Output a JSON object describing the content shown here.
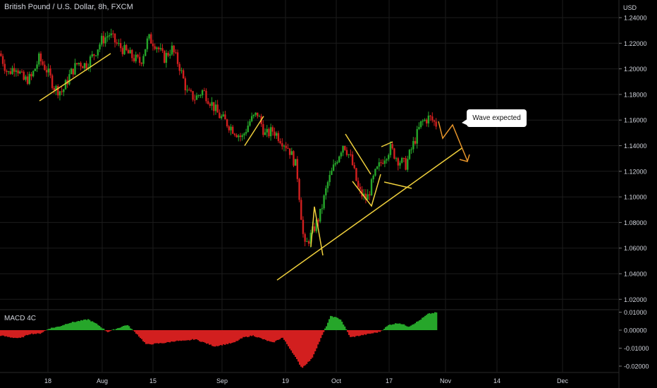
{
  "header": {
    "title": "British Pound / U.S. Dollar, 8h, FXCM",
    "currency": "USD"
  },
  "indicator": {
    "title": "MACD 4C"
  },
  "annotation": {
    "text": "Wave expected"
  },
  "colors": {
    "up": "#26a62a",
    "down": "#d21f1f",
    "drawing": "#f0d03c",
    "projection": "#e8952a",
    "grid": "#1c1c1c",
    "text": "#d1d4dc"
  },
  "chart_data": [
    {
      "type": "candlestick",
      "title": "British Pound / U.S. Dollar, 8h, FXCM",
      "y_axis": {
        "unit": "USD",
        "ticks": [
          "1.24000",
          "1.22000",
          "1.20000",
          "1.18000",
          "1.16000",
          "1.14000",
          "1.12000",
          "1.10000",
          "1.08000",
          "1.06000",
          "1.04000",
          "1.02000"
        ],
        "range": [
          1.0125,
          1.2475
        ]
      },
      "x_axis": {
        "ticks": [
          "18",
          "Aug",
          "15",
          "Sep",
          "19",
          "Oct",
          "17",
          "Nov",
          "14",
          "Dec"
        ]
      },
      "series": [
        {
          "segment": 1,
          "closes": [
            1.212,
            1.196,
            1.203,
            1.191,
            1.193,
            1.208,
            1.199,
            1.185,
            1.182,
            1.196,
            1.205,
            1.203,
            1.211,
            1.222,
            1.227,
            1.219,
            1.214,
            1.209,
            1.205,
            1.224,
            1.219,
            1.208,
            1.216,
            1.202,
            1.181,
            1.177,
            1.183,
            1.174,
            1.164,
            1.158,
            1.152,
            1.146,
            1.159,
            1.165,
            1.148,
            1.152,
            1.145,
            1.138,
            1.123,
            1.06,
            1.072,
            1.086,
            1.111,
            1.127,
            1.142,
            1.129,
            1.104,
            1.098,
            1.117,
            1.129,
            1.138,
            1.129,
            1.125,
            1.142,
            1.158,
            1.162,
            1.156
          ]
        }
      ],
      "drawings": [
        {
          "type": "trendline",
          "from": [
            "18",
            1.175
          ],
          "to": [
            "Aug",
            1.212
          ]
        },
        {
          "type": "trendline",
          "from": [
            "Sep",
            1.14
          ],
          "to": [
            "Sep",
            1.163
          ]
        },
        {
          "type": "trendline",
          "from": [
            "19",
            1.035
          ],
          "to": [
            "Nov",
            1.138
          ]
        },
        {
          "type": "projection",
          "label": "Wave expected"
        }
      ]
    },
    {
      "type": "histogram",
      "title": "MACD 4C",
      "y_axis": {
        "ticks": [
          "0.01000",
          "0.00000",
          "-0.01000",
          "-0.02000"
        ],
        "range": [
          -0.0225,
          0.0108
        ]
      },
      "bucket_values": [
        -0.003,
        -0.004,
        -0.0045,
        -0.002,
        -0.002,
        0.001,
        0.002,
        0.004,
        0.005,
        0.006,
        0.003,
        -0.001,
        0.001,
        0.003,
        -0.002,
        -0.008,
        -0.0075,
        -0.007,
        -0.006,
        -0.006,
        -0.005,
        -0.007,
        -0.009,
        -0.008,
        -0.007,
        -0.004,
        -0.003,
        -0.005,
        -0.007,
        -0.004,
        -0.012,
        -0.021,
        -0.016,
        -0.004,
        0.008,
        0.006,
        -0.004,
        -0.003,
        -0.002,
        -0.001,
        0.003,
        0.004,
        0.002,
        0.005,
        0.009,
        0.01
      ]
    }
  ]
}
